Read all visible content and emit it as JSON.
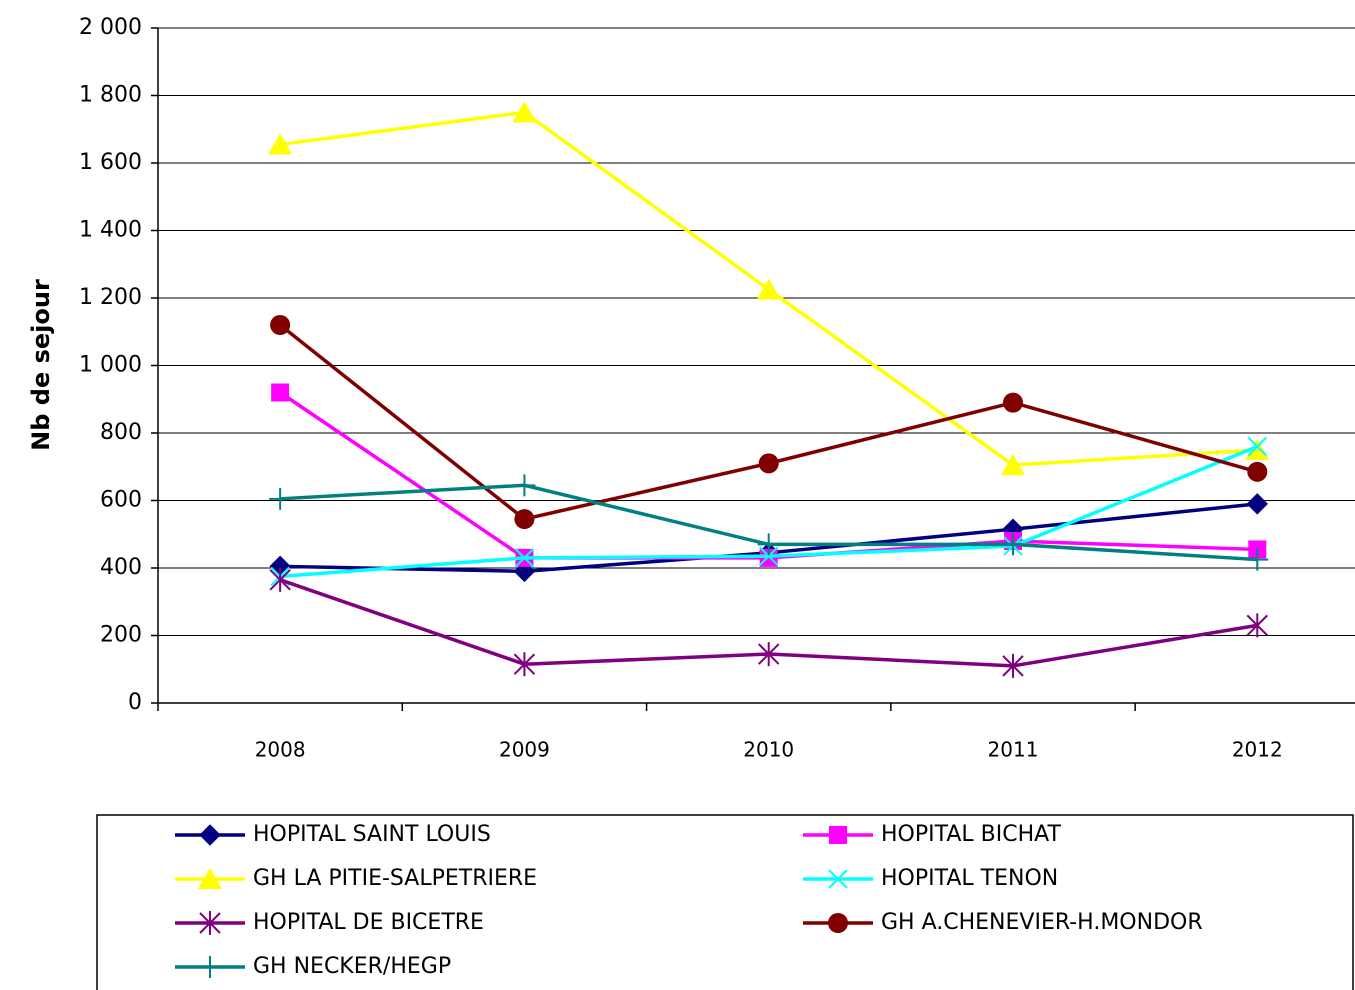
{
  "chart_data": {
    "type": "line",
    "y_label": "Nb de sejour",
    "categories": [
      "2008",
      "2009",
      "2010",
      "2011",
      "2012"
    ],
    "ylim": [
      0,
      2000
    ],
    "yticks": [
      0,
      200,
      400,
      600,
      800,
      {
        "value": 1000,
        "label": "1 000"
      },
      {
        "value": 1200,
        "label": "1 200"
      },
      {
        "value": 1400,
        "label": "1 400"
      },
      {
        "value": 1600,
        "label": "1 600"
      },
      {
        "value": 1800,
        "label": "1 800"
      },
      {
        "value": 2000,
        "label": "2 000"
      }
    ],
    "grid": true,
    "legend": "bottom",
    "series": [
      {
        "name": "HOPITAL SAINT LOUIS",
        "color": "#000080",
        "marker": "diamond",
        "values": [
          405,
          390,
          445,
          515,
          590
        ]
      },
      {
        "name": "HOPITAL BICHAT",
        "color": "#ff00ff",
        "marker": "square",
        "values": [
          920,
          430,
          430,
          480,
          455
        ]
      },
      {
        "name": "GH LA PITIE-SALPETRIERE",
        "color": "#ffff00",
        "marker": "triangle",
        "values": [
          1655,
          1750,
          1225,
          705,
          750
        ]
      },
      {
        "name": "HOPITAL TENON",
        "color": "#00ffff",
        "marker": "x",
        "values": [
          375,
          430,
          435,
          465,
          760
        ]
      },
      {
        "name": "HOPITAL DE BICETRE",
        "color": "#800080",
        "marker": "asterisk",
        "values": [
          365,
          115,
          145,
          110,
          230
        ]
      },
      {
        "name": "GH A.CHENEVIER-H.MONDOR",
        "color": "#800000",
        "marker": "circle",
        "values": [
          1120,
          545,
          710,
          890,
          685
        ]
      },
      {
        "name": "GH NECKER/HEGP",
        "color": "#008080",
        "marker": "plus",
        "values": [
          605,
          645,
          470,
          470,
          425
        ]
      }
    ]
  }
}
